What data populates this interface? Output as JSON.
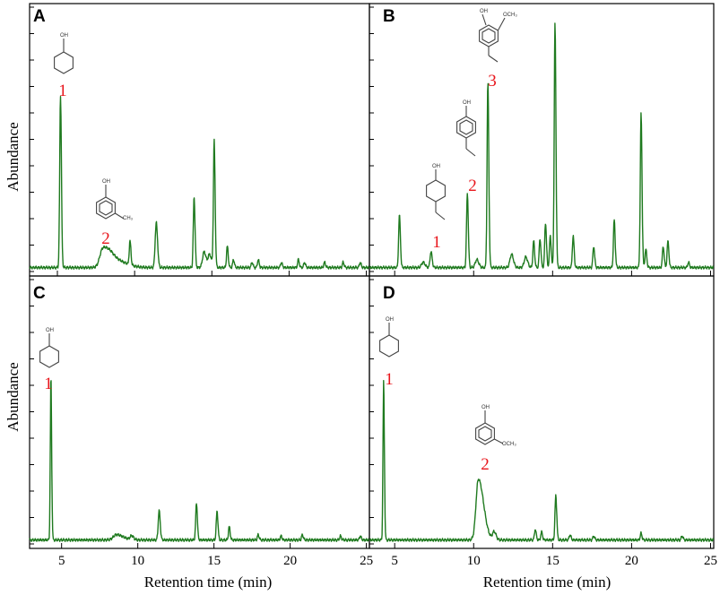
{
  "figure": {
    "y_axis_title": "Abundance",
    "x_axis_title": "Retention time (min)"
  },
  "chart_data": [
    {
      "panel": "A",
      "type": "line",
      "x_ticks": [
        5,
        10,
        15,
        20,
        25
      ],
      "x_range": [
        3.2,
        25.2
      ],
      "y_range": [
        0,
        100
      ],
      "baseline": 1.5,
      "peaks": [
        {
          "x": 5.2,
          "y": 65,
          "w": 0.05
        },
        {
          "x": 7.95,
          "y": 7,
          "w": 0.2
        },
        {
          "x": 8.6,
          "y": 3,
          "w": 0.35
        },
        {
          "x": 9.7,
          "y": 9,
          "w": 0.05
        },
        {
          "x": 11.4,
          "y": 17,
          "w": 0.07
        },
        {
          "x": 13.85,
          "y": 27,
          "w": 0.05
        },
        {
          "x": 14.5,
          "y": 6,
          "w": 0.1
        },
        {
          "x": 14.85,
          "y": 5,
          "w": 0.1
        },
        {
          "x": 15.15,
          "y": 48,
          "w": 0.05
        },
        {
          "x": 16.0,
          "y": 8,
          "w": 0.05
        },
        {
          "x": 16.4,
          "y": 3,
          "w": 0.05
        },
        {
          "x": 17.6,
          "y": 2,
          "w": 0.05
        },
        {
          "x": 18.0,
          "y": 3,
          "w": 0.05
        },
        {
          "x": 19.5,
          "y": 2,
          "w": 0.05
        },
        {
          "x": 20.6,
          "y": 3,
          "w": 0.05
        },
        {
          "x": 21.0,
          "y": 2,
          "w": 0.05
        },
        {
          "x": 22.3,
          "y": 2,
          "w": 0.05
        },
        {
          "x": 23.5,
          "y": 2,
          "w": 0.05
        },
        {
          "x": 24.6,
          "y": 2,
          "w": 0.05
        }
      ],
      "compounds": [
        {
          "label": "1",
          "structure": "cyclohexanol"
        },
        {
          "label": "2",
          "structure": "3-methylphenol"
        }
      ]
    },
    {
      "panel": "B",
      "type": "line",
      "x_ticks": [
        5,
        10,
        15,
        20,
        25
      ],
      "x_range": [
        3.4,
        25.2
      ],
      "y_range": [
        0,
        100
      ],
      "baseline": 1.5,
      "peaks": [
        {
          "x": 5.3,
          "y": 20,
          "w": 0.05
        },
        {
          "x": 6.8,
          "y": 2,
          "w": 0.1
        },
        {
          "x": 7.3,
          "y": 6,
          "w": 0.06
        },
        {
          "x": 9.6,
          "y": 28,
          "w": 0.05
        },
        {
          "x": 10.2,
          "y": 3,
          "w": 0.1
        },
        {
          "x": 10.9,
          "y": 70,
          "w": 0.05
        },
        {
          "x": 12.4,
          "y": 5,
          "w": 0.1
        },
        {
          "x": 13.3,
          "y": 4,
          "w": 0.1
        },
        {
          "x": 13.8,
          "y": 10,
          "w": 0.05
        },
        {
          "x": 14.2,
          "y": 11,
          "w": 0.05
        },
        {
          "x": 14.55,
          "y": 17,
          "w": 0.05
        },
        {
          "x": 14.85,
          "y": 12,
          "w": 0.05
        },
        {
          "x": 15.15,
          "y": 92,
          "w": 0.05
        },
        {
          "x": 16.3,
          "y": 12,
          "w": 0.05
        },
        {
          "x": 17.6,
          "y": 8,
          "w": 0.05
        },
        {
          "x": 18.9,
          "y": 18,
          "w": 0.05
        },
        {
          "x": 20.6,
          "y": 58,
          "w": 0.05
        },
        {
          "x": 20.9,
          "y": 7,
          "w": 0.05
        },
        {
          "x": 22.0,
          "y": 8,
          "w": 0.05
        },
        {
          "x": 22.3,
          "y": 10,
          "w": 0.05
        },
        {
          "x": 23.6,
          "y": 2,
          "w": 0.05
        }
      ],
      "compounds": [
        {
          "label": "1",
          "structure": "4-ethylcyclohexanol"
        },
        {
          "label": "2",
          "structure": "4-ethylphenol"
        },
        {
          "label": "3",
          "structure": "4-ethyl-2-methoxyphenol"
        }
      ]
    },
    {
      "panel": "C",
      "type": "line",
      "x_ticks": [
        5,
        10,
        15,
        20,
        25
      ],
      "x_range": [
        2.9,
        25.2
      ],
      "y_range": [
        0,
        100
      ],
      "baseline": 1.5,
      "peaks": [
        {
          "x": 4.3,
          "y": 62,
          "w": 0.04
        },
        {
          "x": 8.6,
          "y": 2,
          "w": 0.2
        },
        {
          "x": 9.6,
          "y": 1.5,
          "w": 0.1
        },
        {
          "x": 11.4,
          "y": 11,
          "w": 0.06
        },
        {
          "x": 13.85,
          "y": 14,
          "w": 0.05
        },
        {
          "x": 15.2,
          "y": 11,
          "w": 0.05
        },
        {
          "x": 16.0,
          "y": 5,
          "w": 0.05
        },
        {
          "x": 17.9,
          "y": 2,
          "w": 0.05
        },
        {
          "x": 19.4,
          "y": 1.5,
          "w": 0.05
        },
        {
          "x": 20.8,
          "y": 2,
          "w": 0.05
        },
        {
          "x": 23.3,
          "y": 1.5,
          "w": 0.05
        },
        {
          "x": 24.6,
          "y": 1.5,
          "w": 0.05
        }
      ],
      "compounds": [
        {
          "label": "1",
          "structure": "cyclohexanol"
        }
      ]
    },
    {
      "panel": "D",
      "type": "line",
      "x_ticks": [
        5,
        10,
        15,
        20,
        25
      ],
      "x_range": [
        3.4,
        25.2
      ],
      "y_range": [
        0,
        100
      ],
      "baseline": 1.5,
      "peaks": [
        {
          "x": 4.3,
          "y": 60,
          "w": 0.04
        },
        {
          "x": 10.3,
          "y": 23,
          "w": 0.15
        },
        {
          "x": 11.3,
          "y": 3,
          "w": 0.1
        },
        {
          "x": 13.9,
          "y": 4,
          "w": 0.05
        },
        {
          "x": 14.3,
          "y": 3,
          "w": 0.05
        },
        {
          "x": 15.2,
          "y": 17,
          "w": 0.05
        },
        {
          "x": 16.1,
          "y": 2,
          "w": 0.05
        },
        {
          "x": 17.6,
          "y": 1.5,
          "w": 0.05
        },
        {
          "x": 20.6,
          "y": 2.5,
          "w": 0.05
        },
        {
          "x": 23.2,
          "y": 1.5,
          "w": 0.05
        }
      ],
      "compounds": [
        {
          "label": "1",
          "structure": "cyclohexanol"
        },
        {
          "label": "2",
          "structure": "3-methoxyphenol"
        }
      ]
    }
  ],
  "panel_text": {
    "A": {
      "letter": "A",
      "labels": [
        "1",
        "2"
      ],
      "oh": "OH",
      "me": "CH₃"
    },
    "B": {
      "letter": "B",
      "labels": [
        "1",
        "2",
        "3"
      ],
      "oh": "OH",
      "ome": "OCH₃"
    },
    "C": {
      "letter": "C",
      "labels": [
        "1"
      ],
      "oh": "OH"
    },
    "D": {
      "letter": "D",
      "labels": [
        "1",
        "2"
      ],
      "oh": "OH",
      "ome": "OCH₃"
    }
  }
}
